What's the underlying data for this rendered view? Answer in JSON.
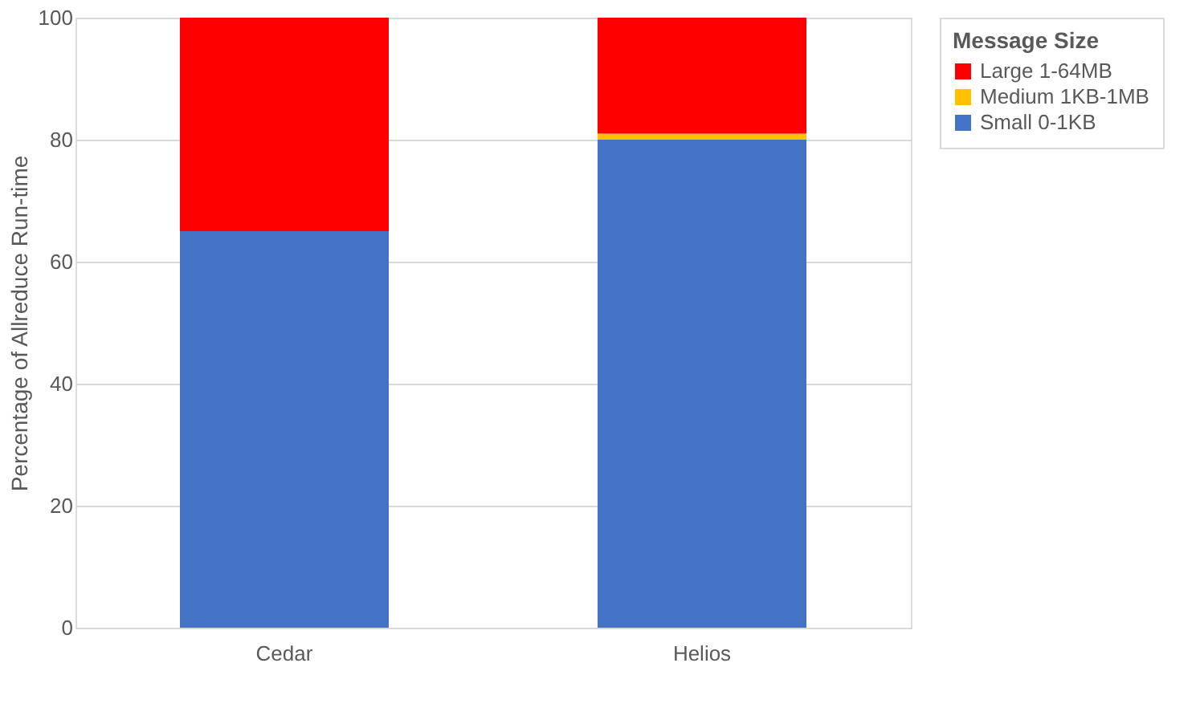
{
  "chart_data": {
    "type": "bar",
    "stacked": true,
    "ylabel": "Percentage of Allreduce Run-time",
    "legend_title": "Message Size",
    "categories": [
      "Cedar",
      "Helios"
    ],
    "series": [
      {
        "name": "Small 0-1KB",
        "color": "#4472c4",
        "values": [
          65,
          80
        ]
      },
      {
        "name": "Medium 1KB-1MB",
        "color": "#ffc000",
        "values": [
          0,
          1
        ]
      },
      {
        "name": "Large 1-64MB",
        "color": "#ff0000",
        "values": [
          35,
          19
        ]
      }
    ],
    "ylim": [
      0,
      100
    ],
    "yticks": [
      0,
      20,
      40,
      60,
      80,
      100
    ],
    "grid": "y",
    "legend": "right"
  }
}
